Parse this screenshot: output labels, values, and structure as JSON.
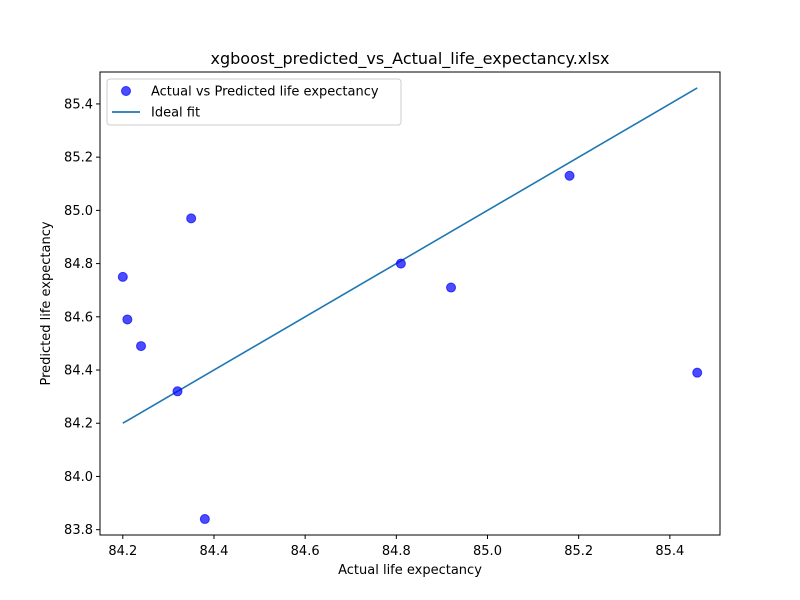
{
  "chart_data": {
    "type": "scatter",
    "title": "xgboost_predicted_vs_Actual_life_expectancy.xlsx",
    "xlabel": "Actual life expectancy",
    "ylabel": "Predicted life expectancy",
    "xlim": [
      84.15,
      85.51
    ],
    "ylim": [
      83.78,
      85.52
    ],
    "xticks": [
      84.2,
      84.4,
      84.6,
      84.8,
      85.0,
      85.2,
      85.4
    ],
    "xtick_labels": [
      "84.2",
      "84.4",
      "84.6",
      "84.8",
      "85.0",
      "85.2",
      "85.4"
    ],
    "yticks": [
      83.8,
      84.0,
      84.2,
      84.4,
      84.6,
      84.8,
      85.0,
      85.2,
      85.4
    ],
    "ytick_labels": [
      "83.8",
      "84.0",
      "84.2",
      "84.4",
      "84.6",
      "84.8",
      "85.0",
      "85.2",
      "85.4"
    ],
    "grid": false,
    "legend_position": "top-left",
    "series": [
      {
        "name": "Actual vs Predicted life expectancy",
        "kind": "scatter",
        "color": "#0000ff",
        "x": [
          84.2,
          84.21,
          84.24,
          84.32,
          84.35,
          84.38,
          84.81,
          84.92,
          85.18,
          85.46
        ],
        "y": [
          84.75,
          84.59,
          84.49,
          84.32,
          84.97,
          83.84,
          84.8,
          84.71,
          85.13,
          84.39
        ]
      },
      {
        "name": "Ideal fit",
        "kind": "line",
        "color": "#1f77b4",
        "x": [
          84.2,
          85.46
        ],
        "y": [
          84.2,
          85.46
        ]
      }
    ]
  }
}
